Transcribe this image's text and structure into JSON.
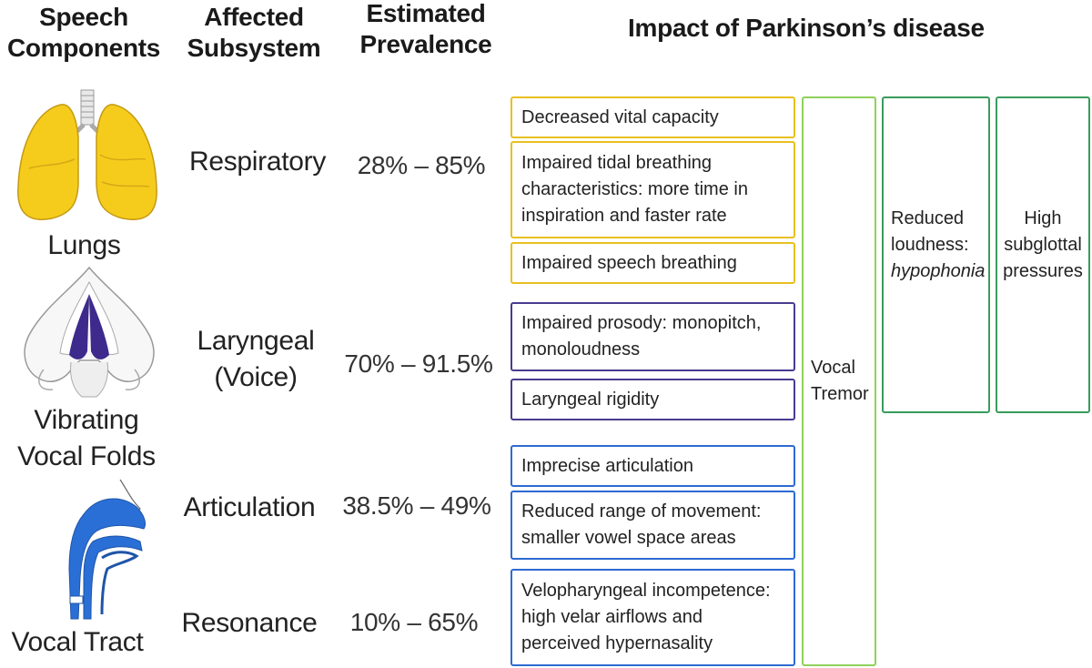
{
  "headers": {
    "components": [
      "Speech",
      "Components"
    ],
    "subsystem": [
      "Affected",
      "Subsystem"
    ],
    "prevalence": [
      "Estimated",
      "Prevalence"
    ],
    "impact": "Impact of Parkinson’s disease"
  },
  "components": {
    "lungs": "Lungs",
    "folds": [
      "Vibrating",
      "Vocal Folds"
    ],
    "tract": "Vocal Tract"
  },
  "subsystems": {
    "respiratory": "Respiratory",
    "laryngeal": [
      "Laryngeal",
      "(Voice)"
    ],
    "articulation": "Articulation",
    "resonance": "Resonance"
  },
  "prevalence": {
    "respiratory": "28% – 85%",
    "laryngeal": "70% – 91.5%",
    "articulation": "38.5% – 49%",
    "resonance": "10% – 65%"
  },
  "impacts": {
    "respiratory": [
      "Decreased vital capacity",
      "Impaired tidal breathing characteristics: more time in inspiration and faster rate",
      "Impaired speech breathing"
    ],
    "laryngeal": [
      "Impaired prosody: monopitch, monoloudness",
      "Laryngeal rigidity"
    ],
    "articulation": [
      "Imprecise articulation",
      "Reduced range of movement: smaller vowel space areas"
    ],
    "resonance": [
      "Velopharyngeal incompetence: high velar airflows and perceived hypernasality"
    ]
  },
  "columns": {
    "tremor": [
      "Vocal",
      "Tremor"
    ],
    "loudness": [
      "Reduced",
      "loudness:",
      "hypophonia"
    ],
    "pressure": [
      "High",
      "subglottal",
      "pressures"
    ]
  },
  "colors": {
    "respiratory": "#e8c020",
    "laryngeal": "#4a3b8f",
    "articulation": "#2e6ad1",
    "tremor": "#8fd15a",
    "green": "#3a9c5c",
    "lung_fill": "#f6cc1c",
    "fold_fill": "#3d2a8c",
    "tract_fill": "#2a6fd6"
  }
}
